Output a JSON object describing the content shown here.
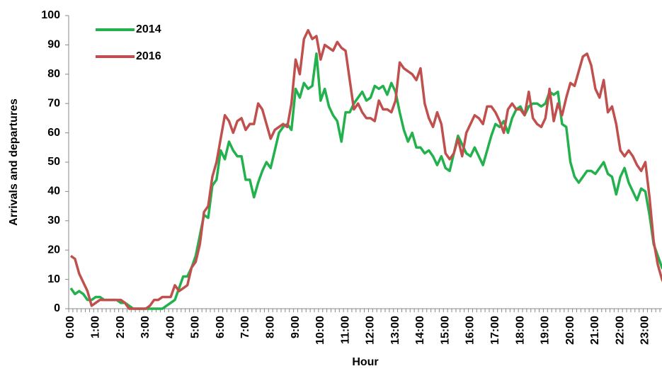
{
  "chart_data": {
    "type": "line",
    "xlabel": "Hour",
    "ylabel": "Arrivals and departures",
    "categories": [
      "0:00",
      null,
      null,
      null,
      null,
      null,
      "1:00",
      null,
      null,
      null,
      null,
      null,
      "2:00",
      null,
      null,
      null,
      null,
      null,
      "3:00",
      null,
      null,
      null,
      null,
      null,
      "4:00",
      null,
      null,
      null,
      null,
      null,
      "5:00",
      null,
      null,
      null,
      null,
      null,
      "6:00",
      null,
      null,
      null,
      null,
      null,
      "7:00",
      null,
      null,
      null,
      null,
      null,
      "8:00",
      null,
      null,
      null,
      null,
      null,
      "9:00",
      null,
      null,
      null,
      null,
      null,
      "10:00",
      null,
      null,
      null,
      null,
      null,
      "11:00",
      null,
      null,
      null,
      null,
      null,
      "12:00",
      null,
      null,
      null,
      null,
      null,
      "13:00",
      null,
      null,
      null,
      null,
      null,
      "14:00",
      null,
      null,
      null,
      null,
      null,
      "15:00",
      null,
      null,
      null,
      null,
      null,
      "16:00",
      null,
      null,
      null,
      null,
      null,
      "17:00",
      null,
      null,
      null,
      null,
      null,
      "18:00",
      null,
      null,
      null,
      null,
      null,
      "19:00",
      null,
      null,
      null,
      null,
      null,
      "20:00",
      null,
      null,
      null,
      null,
      null,
      "21:00",
      null,
      null,
      null,
      null,
      null,
      "22:00",
      null,
      null,
      null,
      null,
      null,
      "23:00",
      null,
      null,
      null,
      null,
      null
    ],
    "series": [
      {
        "name": "2014",
        "color": "#22b14c",
        "values": [
          7,
          5,
          6,
          5,
          3,
          3,
          4,
          4,
          3,
          3,
          3,
          3,
          2,
          2,
          1,
          0,
          0,
          0,
          0,
          0,
          0,
          0,
          0,
          1,
          2,
          3,
          7,
          11,
          11,
          14,
          18,
          25,
          32,
          31,
          42,
          44,
          54,
          51,
          57,
          54,
          52,
          52,
          44,
          44,
          38,
          43,
          47,
          50,
          48,
          54,
          60,
          62,
          63,
          61,
          75,
          72,
          77,
          75,
          76,
          87,
          71,
          75,
          69,
          66,
          64,
          57,
          67,
          67,
          70,
          72,
          74,
          71,
          72,
          76,
          75,
          76,
          73,
          77,
          74,
          67,
          61,
          57,
          60,
          55,
          55,
          53,
          54,
          52,
          49,
          52,
          48,
          47,
          53,
          59,
          56,
          53,
          52,
          55,
          52,
          49,
          54,
          59,
          63,
          62,
          64,
          60,
          65,
          68,
          69,
          66,
          69,
          70,
          70,
          69,
          70,
          74,
          73,
          74,
          63,
          62,
          50,
          45,
          43,
          45,
          47,
          47,
          46,
          48,
          50,
          46,
          45,
          39,
          45,
          48,
          43,
          40,
          37,
          41,
          40,
          32,
          22,
          18,
          14,
          12
        ]
      },
      {
        "name": "2016",
        "color": "#c0504d",
        "values": [
          18,
          17,
          12,
          9,
          6,
          1,
          2,
          3,
          3,
          3,
          3,
          3,
          3,
          2,
          0,
          0,
          0,
          0,
          0,
          1,
          3,
          3,
          4,
          4,
          4,
          8,
          6,
          7,
          8,
          14,
          16,
          22,
          33,
          35,
          45,
          50,
          58,
          66,
          64,
          60,
          64,
          65,
          61,
          63,
          63,
          70,
          68,
          63,
          58,
          61,
          62,
          63,
          62,
          70,
          85,
          80,
          92,
          95,
          92,
          93,
          85,
          90,
          89,
          88,
          91,
          89,
          88,
          78,
          68,
          70,
          67,
          65,
          65,
          64,
          71,
          68,
          68,
          67,
          71,
          84,
          82,
          81,
          80,
          78,
          82,
          70,
          65,
          62,
          67,
          63,
          53,
          51,
          53,
          58,
          52,
          60,
          63,
          66,
          65,
          63,
          69,
          69,
          67,
          64,
          60,
          68,
          70,
          68,
          68,
          66,
          74,
          65,
          63,
          62,
          65,
          75,
          64,
          70,
          66,
          72,
          77,
          76,
          81,
          86,
          87,
          83,
          75,
          72,
          78,
          67,
          69,
          63,
          54,
          52,
          54,
          52,
          49,
          47,
          50,
          38,
          23,
          15,
          10,
          7
        ]
      }
    ],
    "ylim": [
      0,
      100
    ],
    "yticks": [
      0,
      10,
      20,
      30,
      40,
      50,
      60,
      70,
      80,
      90,
      100
    ],
    "grid": false,
    "legend": "top-left"
  }
}
